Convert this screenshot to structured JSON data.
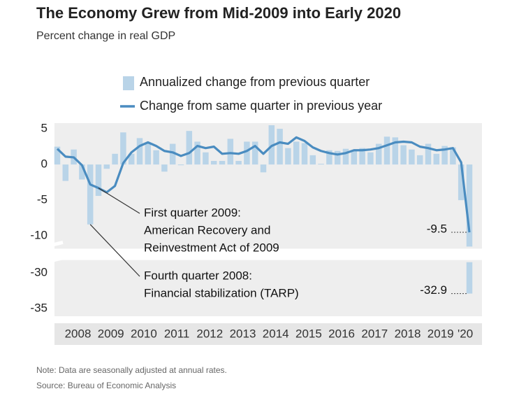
{
  "chart_data": {
    "type": "bar_line",
    "title": "The Economy Grew from Mid-2009 into Early 2020",
    "subtitle": "Percent change in real GDP",
    "categories": [
      null,
      "2008",
      null,
      null,
      null,
      "2009",
      null,
      null,
      null,
      "2010",
      null,
      null,
      null,
      "2011",
      null,
      null,
      null,
      "2012",
      null,
      null,
      null,
      "2013",
      null,
      null,
      null,
      "2014",
      null,
      null,
      null,
      "2015",
      null,
      null,
      null,
      "2016",
      null,
      null,
      null,
      "2017",
      null,
      null,
      null,
      "2018",
      null,
      null,
      null,
      "2019",
      null,
      null,
      null,
      "'20",
      null
    ],
    "series": [
      {
        "name": "Annualized change from previous quarter",
        "kind": "bar",
        "color": "#b9d4e8",
        "values": [
          2.5,
          -2.3,
          2.1,
          -2.1,
          -8.4,
          -4.4,
          -0.6,
          1.5,
          4.5,
          1.5,
          3.7,
          3.0,
          2.0,
          -1.0,
          2.9,
          -0.1,
          4.7,
          3.2,
          1.7,
          0.5,
          0.5,
          3.6,
          0.5,
          3.2,
          3.2,
          -1.1,
          5.5,
          5.0,
          2.3,
          3.2,
          3.0,
          1.3,
          0.1,
          2.0,
          1.9,
          2.2,
          2.0,
          2.3,
          1.7,
          2.9,
          3.9,
          3.8,
          2.7,
          2.1,
          1.3,
          2.9,
          1.5,
          2.6,
          2.4,
          -5.0,
          -32.9
        ]
      },
      {
        "name": "Change from same quarter in previous year",
        "kind": "line",
        "color": "#4a8cc0",
        "values": [
          2.2,
          1.1,
          1.0,
          -0.1,
          -2.8,
          -3.3,
          -3.9,
          -3.0,
          0.2,
          1.7,
          2.6,
          3.1,
          2.6,
          1.9,
          1.7,
          1.2,
          1.6,
          2.6,
          2.3,
          2.5,
          1.5,
          1.6,
          1.5,
          1.9,
          2.6,
          1.5,
          2.6,
          3.1,
          2.9,
          3.8,
          3.3,
          2.4,
          1.9,
          1.6,
          1.4,
          1.6,
          2.0,
          2.0,
          2.1,
          2.3,
          2.7,
          3.1,
          3.2,
          3.1,
          2.5,
          2.3,
          2.0,
          2.1,
          2.3,
          0.3,
          -9.5
        ]
      }
    ],
    "ylim": [
      -36,
      5.6
    ],
    "y_break": [
      -11.5,
      -28.5
    ],
    "yticks": [
      5,
      0,
      -5,
      -10,
      -30,
      -35
    ],
    "grid": false,
    "annotations": [
      {
        "lines": [
          "First quarter 2009:",
          "American Recovery and",
          "Reinvestment Act of 2009"
        ],
        "category_index": 5,
        "series": 1
      },
      {
        "lines": [
          "Fourth quarter 2008:",
          "Financial stabilization (TARP)"
        ],
        "category_index": 4,
        "series": 0
      }
    ],
    "notes": [
      "Note: Data are seasonally adjusted at annual rates.",
      "Source: Bureau of Economic Analysis"
    ]
  }
}
